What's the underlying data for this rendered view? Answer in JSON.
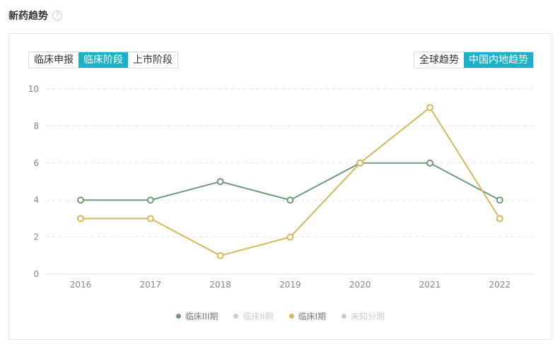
{
  "header": {
    "title": "新药趋势",
    "help_icon": "question-circle-icon"
  },
  "stage_tabs": [
    {
      "label": "临床申报",
      "active": false
    },
    {
      "label": "临床阶段",
      "active": true
    },
    {
      "label": "上市阶段",
      "active": false
    }
  ],
  "region_tabs": [
    {
      "label": "全球趋势",
      "active": false
    },
    {
      "label": "中国内地趋势",
      "active": true
    }
  ],
  "colors": {
    "accent": "#1bb1c8",
    "phase3": "#6e9a7b",
    "phase1": "#d4b95a",
    "inactive": "#cccccc"
  },
  "legend": [
    {
      "label": "临床III期",
      "color": "#6e9a7b",
      "active": true
    },
    {
      "label": "临床II期",
      "color": "#cccccc",
      "active": false
    },
    {
      "label": "临床I期",
      "color": "#d4b95a",
      "active": true
    },
    {
      "label": "未知分期",
      "color": "#cccccc",
      "active": false
    }
  ],
  "chart_data": {
    "type": "line",
    "title": "新药趋势",
    "xlabel": "",
    "ylabel": "",
    "categories": [
      "2016",
      "2017",
      "2018",
      "2019",
      "2020",
      "2021",
      "2022"
    ],
    "ylim": [
      0,
      10
    ],
    "yticks": [
      0,
      2,
      4,
      6,
      8,
      10
    ],
    "grid": true,
    "legend_position": "bottom",
    "series": [
      {
        "name": "临床III期",
        "color": "#6e9a7b",
        "values": [
          4,
          4,
          5,
          4,
          6,
          6,
          4
        ],
        "visible": true
      },
      {
        "name": "临床II期",
        "color": "#cccccc",
        "values": [],
        "visible": false
      },
      {
        "name": "临床I期",
        "color": "#d4b95a",
        "values": [
          3,
          3,
          1,
          2,
          6,
          9,
          3
        ],
        "visible": true
      },
      {
        "name": "未知分期",
        "color": "#cccccc",
        "values": [],
        "visible": false
      }
    ]
  }
}
